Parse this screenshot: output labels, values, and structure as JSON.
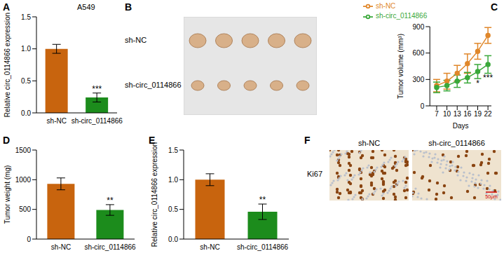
{
  "chart_data": [
    {
      "label": "A",
      "type": "bar",
      "title": "A549",
      "y_label": "Relative circ_0114866 expression",
      "categories": [
        "sh-NC",
        "sh-circ_0114866"
      ],
      "values": [
        1.0,
        0.24
      ],
      "errors": [
        0.07,
        0.07
      ],
      "colors": [
        "#c8640e",
        "#1c8c1c"
      ],
      "ylim": [
        0,
        1.5
      ],
      "yticks": [
        {
          "value": 0,
          "label": "0.0"
        },
        {
          "value": 0.5,
          "label": "0.5"
        },
        {
          "value": 1,
          "label": "1.0"
        },
        {
          "value": 1.5,
          "label": "1.5"
        }
      ],
      "annotations": [
        {
          "x": "sh-circ_0114866",
          "text": "***"
        }
      ]
    },
    {
      "label": "B",
      "type": "image",
      "row_labels": [
        "sh-NC",
        "sh-circ_0114866"
      ],
      "tumors_per_group": 5
    },
    {
      "label": "C",
      "type": "line",
      "y_label": "Tumor volume (mm³)",
      "x_label": "Days",
      "x": [
        7,
        10,
        13,
        16,
        19,
        22
      ],
      "xlim": [
        5,
        23
      ],
      "xticks": [
        7,
        10,
        13,
        16,
        19,
        22
      ],
      "ylim": [
        0,
        900
      ],
      "yticks": [
        0,
        300,
        600,
        900
      ],
      "legend": "upper left",
      "marker": "circle",
      "series": [
        {
          "name": "sh-NC",
          "color": "#e0872a",
          "values": [
            230,
            280,
            370,
            480,
            620,
            800
          ],
          "errors": [
            70,
            90,
            90,
            110,
            90,
            90
          ]
        },
        {
          "name": "sh-circ_0114866",
          "color": "#3aa83a",
          "values": [
            210,
            230,
            280,
            320,
            390,
            470
          ],
          "errors": [
            60,
            60,
            70,
            60,
            80,
            100
          ]
        }
      ],
      "annotations": [
        {
          "x": 19,
          "series": "sh-circ_0114866",
          "text": "*"
        },
        {
          "x": 22,
          "series": "sh-circ_0114866",
          "text": "***"
        }
      ]
    },
    {
      "label": "D",
      "type": "bar",
      "y_label": "Tumor weight (mg)",
      "categories": [
        "sh-NC",
        "sh-circ_0114866"
      ],
      "values": [
        930,
        490
      ],
      "errors": [
        100,
        90
      ],
      "colors": [
        "#c8640e",
        "#1c8c1c"
      ],
      "ylim": [
        0,
        1500
      ],
      "yticks": [
        0,
        500,
        1000,
        1500
      ],
      "annotations": [
        {
          "x": "sh-circ_0114866",
          "text": "**"
        }
      ]
    },
    {
      "label": "E",
      "type": "bar",
      "y_label": "Relative circ_0114866 expression",
      "categories": [
        "sh-NC",
        "sh-circ_0114866"
      ],
      "values": [
        1.0,
        0.46
      ],
      "errors": [
        0.1,
        0.13
      ],
      "colors": [
        "#c8640e",
        "#1c8c1c"
      ],
      "ylim": [
        0,
        1.5
      ],
      "yticks": [
        {
          "value": 0,
          "label": "0.0"
        },
        {
          "value": 0.5,
          "label": "0.5"
        },
        {
          "value": 1,
          "label": "1.0"
        },
        {
          "value": 1.5,
          "label": "1.5"
        }
      ],
      "annotations": [
        {
          "x": "sh-circ_0114866",
          "text": "**"
        }
      ]
    },
    {
      "label": "F",
      "type": "image",
      "column_labels": [
        "sh-NC",
        "sh-circ_0114866"
      ],
      "row_labels": [
        "Ki67"
      ],
      "scale_bar": "50μm"
    }
  ]
}
